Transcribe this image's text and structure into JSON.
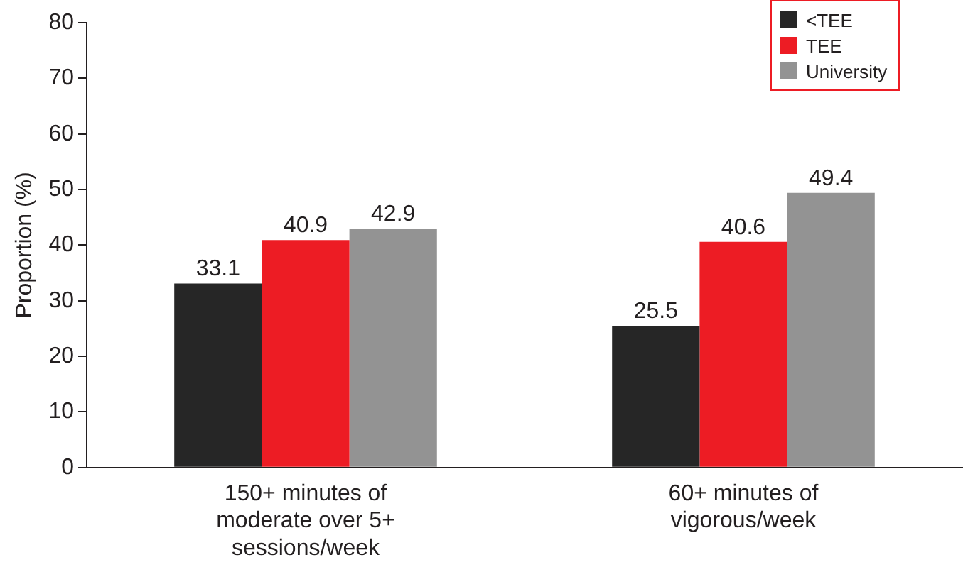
{
  "chart_data": {
    "type": "bar",
    "ylabel": "Proportion (%)",
    "categories": [
      "150+ minutes of moderate over 5+ sessions/week",
      "60+ minutes of vigorous/week"
    ],
    "series": [
      {
        "name": "<TEE",
        "color": "#262626",
        "values": [
          33.1,
          25.5
        ]
      },
      {
        "name": "TEE",
        "color": "#ed1c24",
        "values": [
          40.9,
          40.6
        ]
      },
      {
        "name": "University",
        "color": "#939393",
        "values": [
          42.9,
          49.4
        ]
      }
    ],
    "ylim": [
      0,
      80
    ],
    "yticks": [
      0,
      10,
      20,
      30,
      40,
      50,
      60,
      70,
      80
    ],
    "grid": false,
    "legend": "top right",
    "data_labels": true
  }
}
